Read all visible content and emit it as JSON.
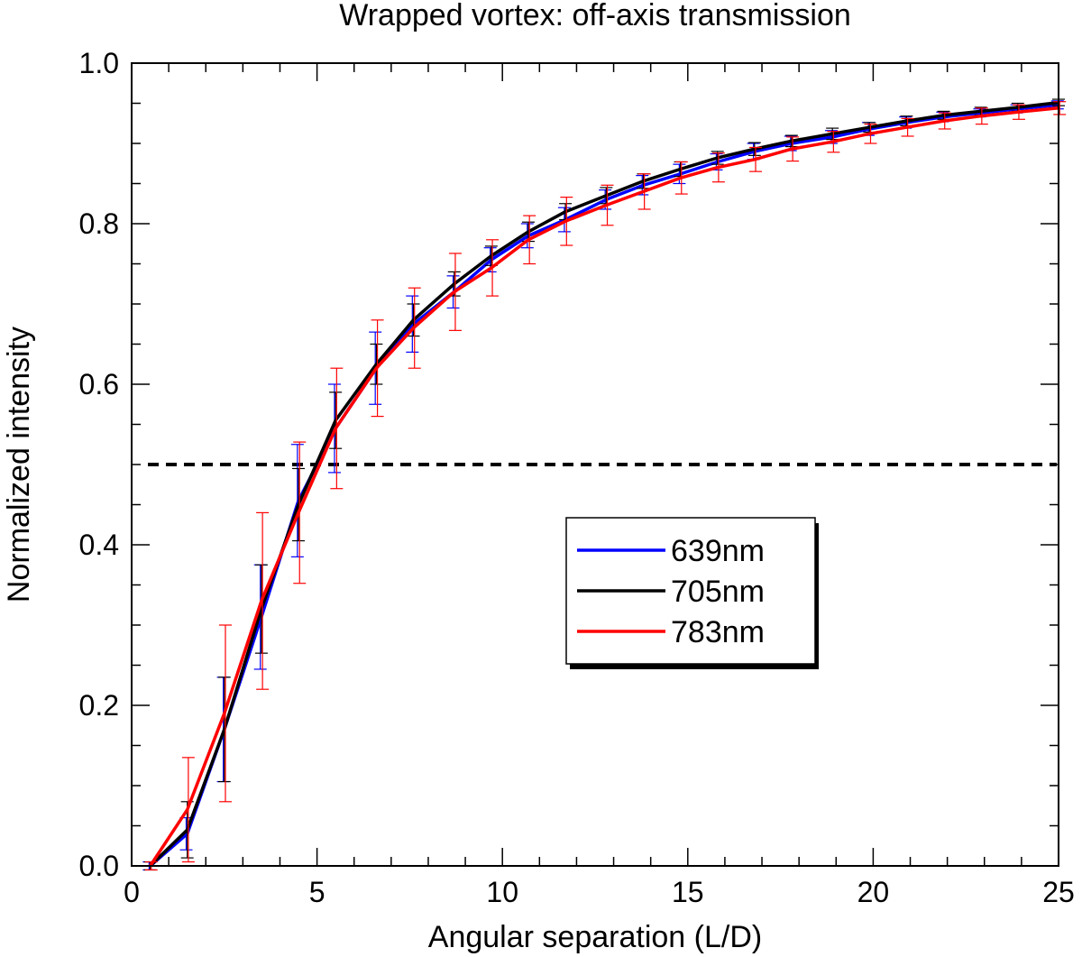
{
  "chart_data": {
    "type": "line",
    "title": "Wrapped vortex: off-axis transmission",
    "xlabel": "Angular separation (L/D)",
    "ylabel": "Normalized intensity",
    "xlim": [
      0,
      25
    ],
    "ylim": [
      0,
      1.0
    ],
    "x_ticks": [
      "0",
      "5",
      "10",
      "15",
      "20",
      "25"
    ],
    "y_ticks": [
      "0.0",
      "0.2",
      "0.4",
      "0.6",
      "0.8",
      "1.0"
    ],
    "reference_line": {
      "y": 0.5,
      "style": "dashed",
      "color": "#000000"
    },
    "legend": {
      "placement": "center-right",
      "shadow": true
    },
    "x": [
      0.5,
      1.5,
      2.5,
      3.5,
      4.5,
      5.5,
      6.6,
      7.6,
      8.7,
      9.7,
      10.7,
      11.7,
      12.8,
      13.8,
      14.8,
      15.8,
      16.8,
      17.8,
      18.9,
      19.9,
      20.9,
      21.9,
      22.9,
      23.9,
      25.0
    ],
    "series": [
      {
        "name": "639nm",
        "color": "#0000ff",
        "values": [
          0.0,
          0.04,
          0.17,
          0.31,
          0.455,
          0.545,
          0.62,
          0.675,
          0.715,
          0.755,
          0.785,
          0.805,
          0.83,
          0.848,
          0.862,
          0.877,
          0.89,
          0.9,
          0.908,
          0.918,
          0.926,
          0.933,
          0.938,
          0.943,
          0.948
        ],
        "error": [
          0.005,
          0.02,
          0.065,
          0.065,
          0.07,
          0.055,
          0.045,
          0.035,
          0.02,
          0.015,
          0.015,
          0.015,
          0.012,
          0.012,
          0.012,
          0.01,
          0.01,
          0.009,
          0.008,
          0.008,
          0.007,
          0.006,
          0.005,
          0.005,
          0.005
        ]
      },
      {
        "name": "705nm",
        "color": "#000000",
        "values": [
          0.0,
          0.045,
          0.17,
          0.32,
          0.45,
          0.555,
          0.625,
          0.68,
          0.725,
          0.76,
          0.79,
          0.815,
          0.835,
          0.853,
          0.868,
          0.882,
          0.893,
          0.903,
          0.912,
          0.92,
          0.928,
          0.935,
          0.94,
          0.945,
          0.951
        ],
        "error": [
          0.005,
          0.035,
          0.065,
          0.055,
          0.045,
          0.035,
          0.025,
          0.02,
          0.015,
          0.012,
          0.012,
          0.01,
          0.01,
          0.009,
          0.009,
          0.008,
          0.008,
          0.007,
          0.007,
          0.006,
          0.006,
          0.005,
          0.005,
          0.005,
          0.004
        ]
      },
      {
        "name": "783nm",
        "color": "#ff0000",
        "values": [
          0.0,
          0.07,
          0.19,
          0.33,
          0.44,
          0.545,
          0.62,
          0.67,
          0.715,
          0.745,
          0.78,
          0.803,
          0.823,
          0.84,
          0.857,
          0.87,
          0.88,
          0.893,
          0.902,
          0.912,
          0.92,
          0.928,
          0.934,
          0.939,
          0.944
        ],
        "error": [
          0.005,
          0.065,
          0.11,
          0.11,
          0.088,
          0.075,
          0.06,
          0.05,
          0.048,
          0.035,
          0.03,
          0.03,
          0.025,
          0.022,
          0.02,
          0.018,
          0.015,
          0.015,
          0.013,
          0.012,
          0.011,
          0.01,
          0.01,
          0.009,
          0.008
        ]
      }
    ]
  }
}
